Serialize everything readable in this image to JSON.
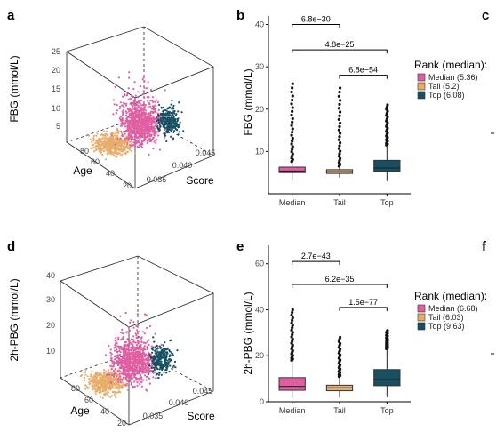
{
  "panel_letters": {
    "a": "a",
    "b": "b",
    "c": "c",
    "d": "d",
    "e": "e",
    "f": "f"
  },
  "colors": {
    "median": "#e05fa3",
    "tail": "#e8ad6a",
    "top": "#174f63",
    "axis": "#000000",
    "box_edge": "#333333"
  },
  "chart_data": [
    {
      "panel": "a",
      "type": "scatter",
      "projection": "3d",
      "zlabel": "FBG (mmol/L)",
      "z_ticks": [
        "5",
        "10",
        "15",
        "20",
        "25"
      ],
      "y_axis_label": "Age",
      "y_ticks": [
        "20",
        "40",
        "60",
        "80"
      ],
      "x_axis_label": "Score",
      "x_ticks": [
        "0.035",
        "0.040",
        "0.045"
      ]
    },
    {
      "panel": "b",
      "type": "box",
      "ylabel": "FBG (mmol/L)",
      "ylim": [
        0,
        42
      ],
      "y_ticks": [
        10,
        20,
        30,
        40
      ],
      "categories": [
        "Median",
        "Tail",
        "Top"
      ],
      "boxes": [
        {
          "q1": 5.0,
          "median": 5.36,
          "q3": 6.3,
          "whisker_low": 3.0,
          "whisker_high": 7.6,
          "outlier_max": 26
        },
        {
          "q1": 4.8,
          "median": 5.2,
          "q3": 5.7,
          "whisker_low": 3.8,
          "whisker_high": 6.5,
          "outlier_max": 25
        },
        {
          "q1": 5.3,
          "median": 6.08,
          "q3": 7.9,
          "whisker_low": 3.0,
          "whisker_high": 11.5,
          "outlier_max": 21
        }
      ],
      "comparisons": [
        {
          "from": "Median",
          "to": "Tail",
          "p": "6.8e−30",
          "level": 40
        },
        {
          "from": "Median",
          "to": "Top",
          "p": "4.8e−25",
          "level": 34
        },
        {
          "from": "Tail",
          "to": "Top",
          "p": "6.8e−54",
          "level": 28
        }
      ],
      "legend_title": "Rank (median):",
      "legend": [
        "Median (5.36)",
        "Tail (5.2)",
        "Top (6.08)"
      ]
    },
    {
      "panel": "d",
      "type": "scatter",
      "projection": "3d",
      "zlabel": "2h-PBG (mmol/L)",
      "z_ticks": [
        "10",
        "20",
        "30",
        "40"
      ],
      "y_axis_label": "Age",
      "y_ticks": [
        "20",
        "40",
        "60",
        "80"
      ],
      "x_axis_label": "Score",
      "x_ticks": [
        "0.035",
        "0.040",
        "0.045"
      ]
    },
    {
      "panel": "e",
      "type": "box",
      "ylabel": "2h-PBG (mmol/L)",
      "ylim": [
        0,
        68
      ],
      "y_ticks": [
        0,
        20,
        40,
        60
      ],
      "categories": [
        "Median",
        "Tail",
        "Top"
      ],
      "boxes": [
        {
          "q1": 5.0,
          "median": 6.68,
          "q3": 10.5,
          "whisker_low": 1.5,
          "whisker_high": 18,
          "outlier_max": 40
        },
        {
          "q1": 4.8,
          "median": 6.03,
          "q3": 7.2,
          "whisker_low": 1.8,
          "whisker_high": 11,
          "outlier_max": 28
        },
        {
          "q1": 7.0,
          "median": 9.63,
          "q3": 14.0,
          "whisker_low": 2.0,
          "whisker_high": 23,
          "outlier_max": 31
        }
      ],
      "comparisons": [
        {
          "from": "Median",
          "to": "Tail",
          "p": "2.7e−43",
          "level": 61
        },
        {
          "from": "Median",
          "to": "Top",
          "p": "6.2e−35",
          "level": 51
        },
        {
          "from": "Tail",
          "to": "Top",
          "p": "1.5e−77",
          "level": 41
        }
      ],
      "legend_title": "Rank (median):",
      "legend": [
        "Median (6.68)",
        "Tail (6.03)",
        "Top (9.63)"
      ]
    }
  ]
}
